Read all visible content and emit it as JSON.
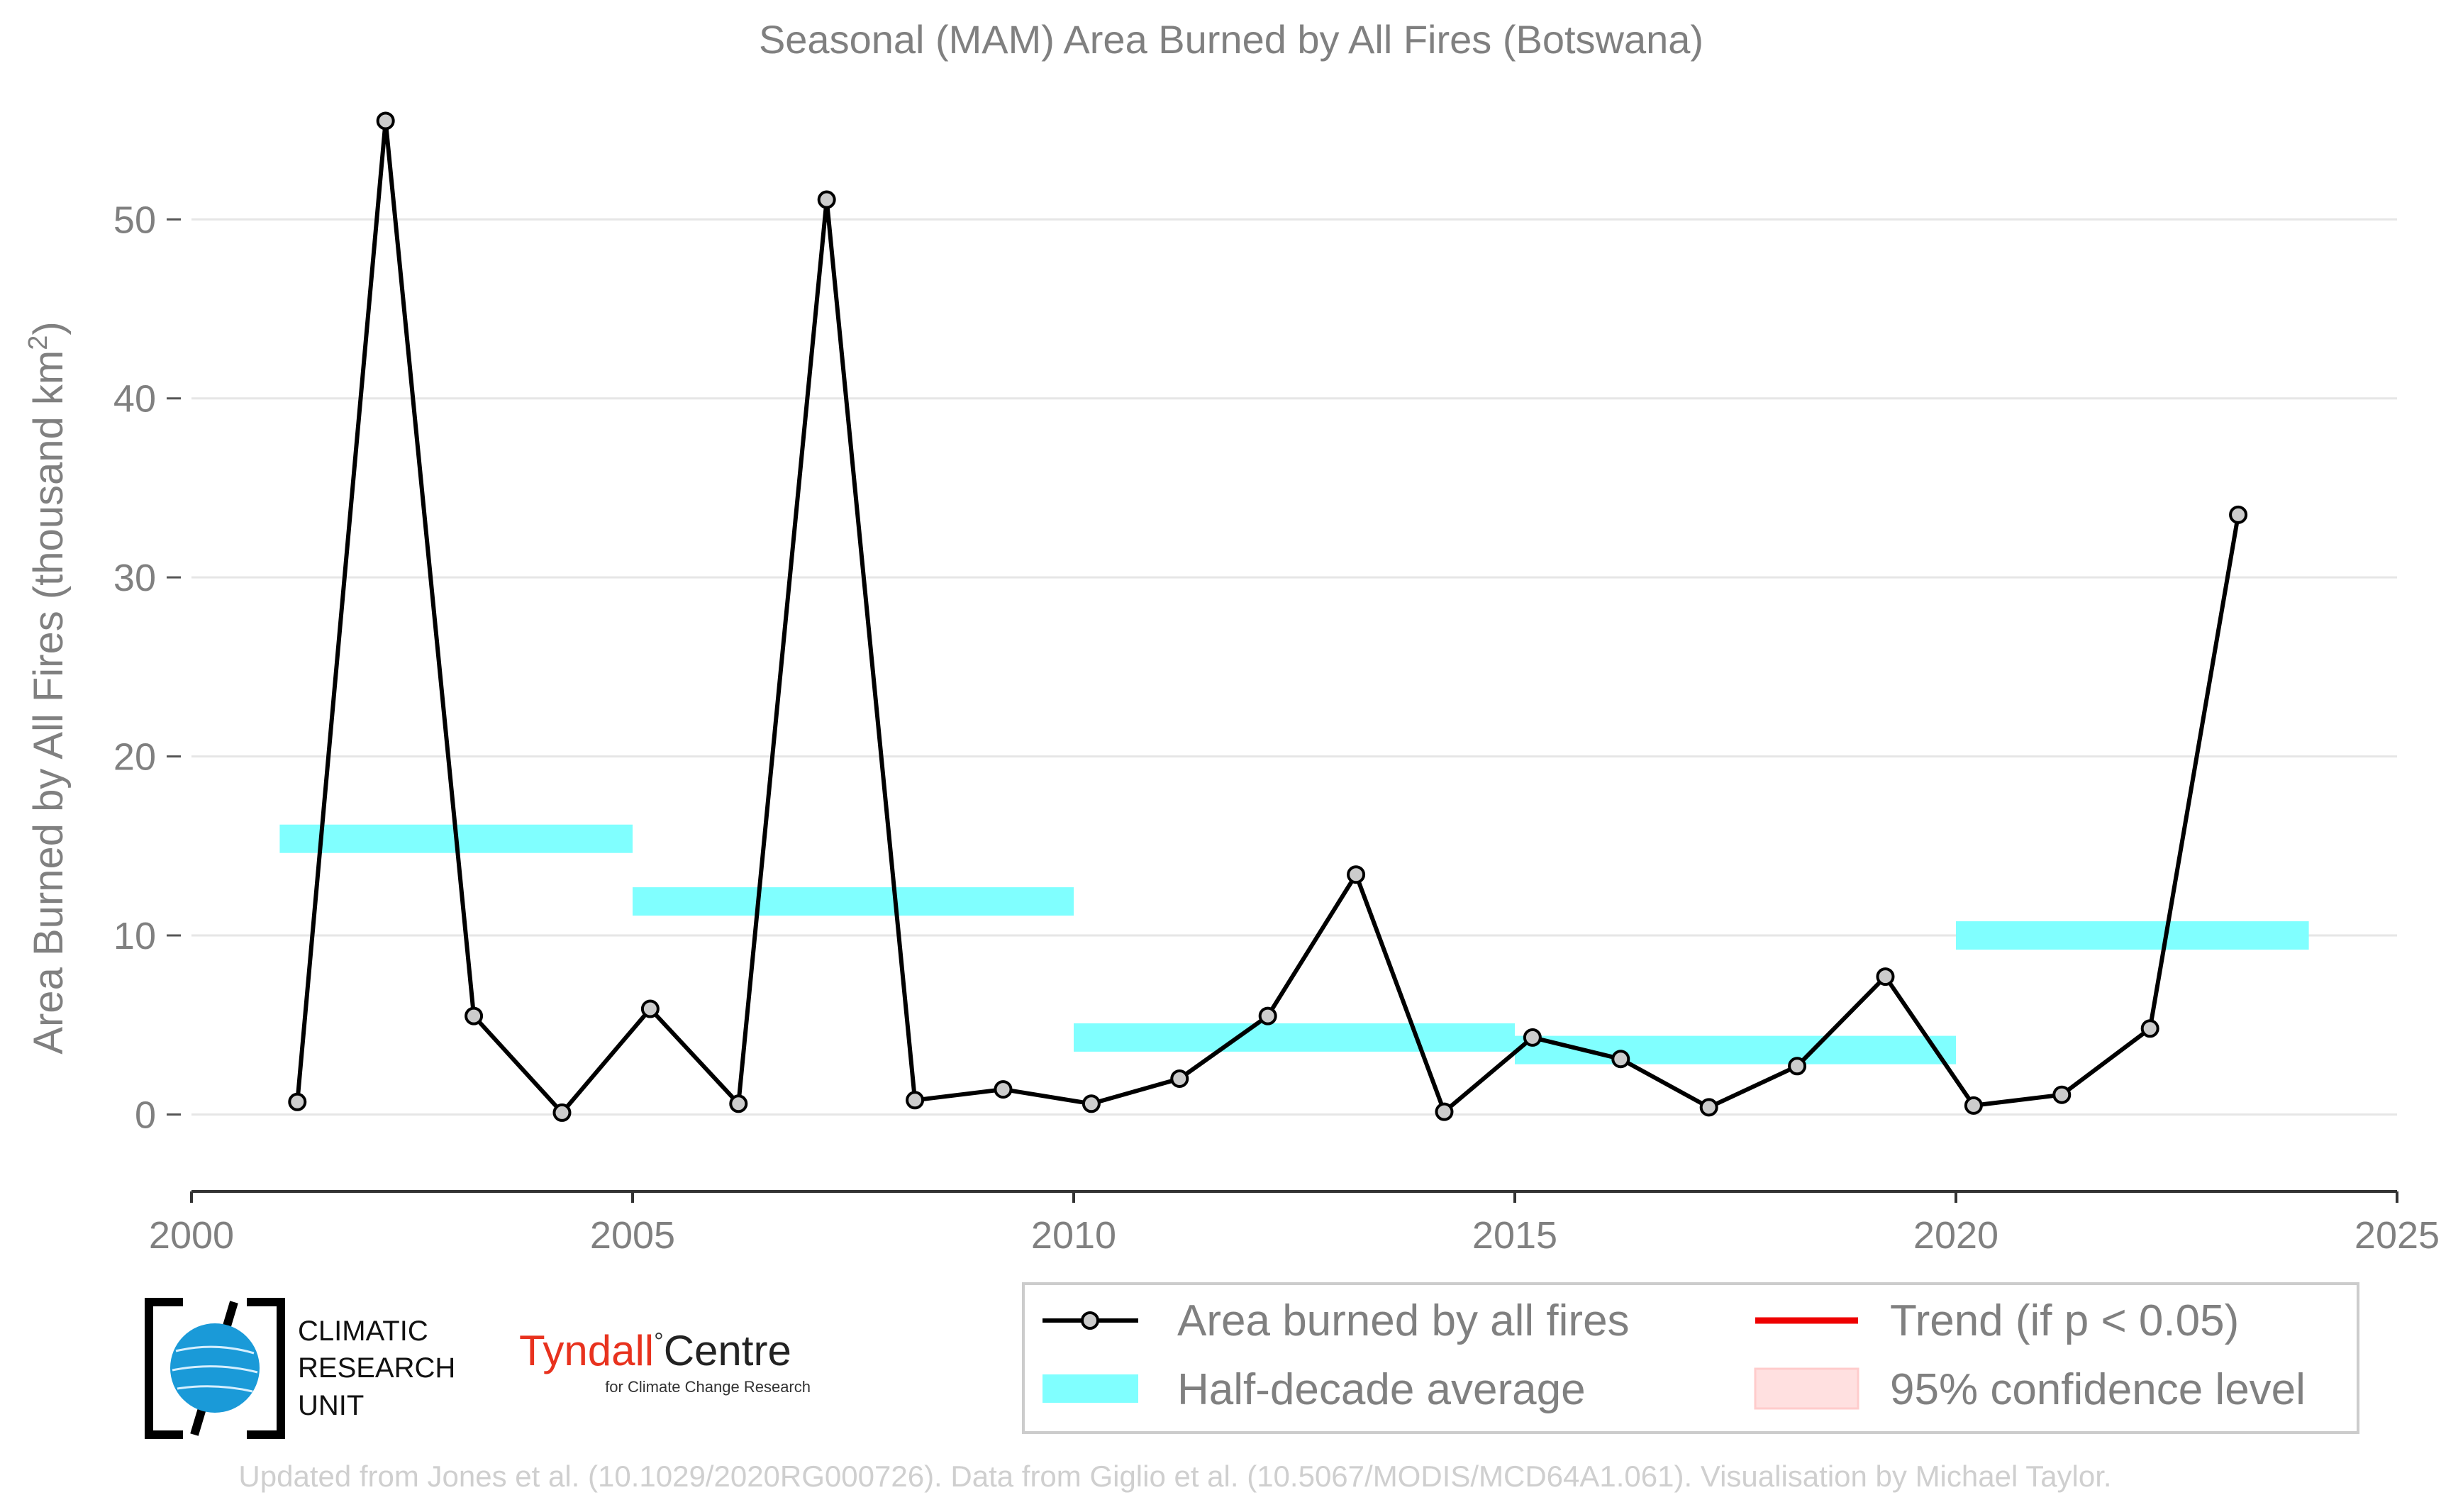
{
  "chart_data": {
    "type": "line",
    "title": "Seasonal (MAM) Area Burned by All Fires (Botswana)",
    "xlabel": "",
    "ylabel": "Area Burned by All Fires (thousand km",
    "ylabel_sup": "2",
    "ylabel_close": ")",
    "xlim": [
      2000,
      2025
    ],
    "ylim": [
      -4.3,
      57.5
    ],
    "xticks": [
      "2000",
      "2005",
      "2010",
      "2015",
      "2020",
      "2025"
    ],
    "yticks": [
      "0",
      "10",
      "20",
      "30",
      "40",
      "50"
    ],
    "grid": true,
    "series": [
      {
        "name": "Area burned by all fires",
        "color": "#000000",
        "marker_fill": "#cccccc",
        "x": [
          2001.2,
          2002.2,
          2003.2,
          2004.2,
          2005.2,
          2006.2,
          2007.2,
          2008.2,
          2009.2,
          2010.2,
          2011.2,
          2012.2,
          2013.2,
          2014.2,
          2015.2,
          2016.2,
          2017.2,
          2018.2,
          2019.2,
          2020.2,
          2021.2,
          2022.2,
          2023.2
        ],
        "values": [
          0.7,
          55.5,
          5.5,
          0.1,
          5.9,
          0.6,
          51.1,
          0.8,
          1.4,
          0.6,
          2.0,
          5.5,
          13.4,
          0.15,
          4.3,
          3.1,
          0.4,
          2.7,
          7.7,
          0.5,
          1.1,
          4.8,
          33.5
        ]
      }
    ],
    "half_decade_average": {
      "name": "Half-decade average",
      "color": "#80ffff",
      "segments": [
        {
          "x0": 2001,
          "x1": 2005,
          "value": 15.4
        },
        {
          "x0": 2005,
          "x1": 2010,
          "value": 11.9
        },
        {
          "x0": 2010,
          "x1": 2015,
          "value": 4.3
        },
        {
          "x0": 2015,
          "x1": 2020,
          "value": 3.6
        },
        {
          "x0": 2020,
          "x1": 2024,
          "value": 10.0
        }
      ]
    },
    "legend": {
      "position": "bottom-right",
      "items": [
        {
          "label": "Area burned by all fires",
          "kind": "line-marker",
          "color": "#000000"
        },
        {
          "label": "Trend (if p < 0.05)",
          "kind": "line",
          "color": "#ee0000"
        },
        {
          "label": "Half-decade average",
          "kind": "band",
          "color": "#80ffff"
        },
        {
          "label": "95% confidence level",
          "kind": "patch",
          "color": "#ffe0e0"
        }
      ]
    }
  },
  "logos": {
    "cru": {
      "line1": "CLIMATIC",
      "line2": "RESEARCH",
      "line3": "UNIT"
    },
    "tyndall": {
      "word1": "Tyndall",
      "degree": "°",
      "word2": "Centre",
      "subtitle": "for Climate Change Research"
    }
  },
  "footer": "Updated from Jones et al. (10.1029/2020RG000726). Data from Giglio et al. (10.5067/MODIS/MCD64A1.061). Visualisation by Michael Taylor."
}
